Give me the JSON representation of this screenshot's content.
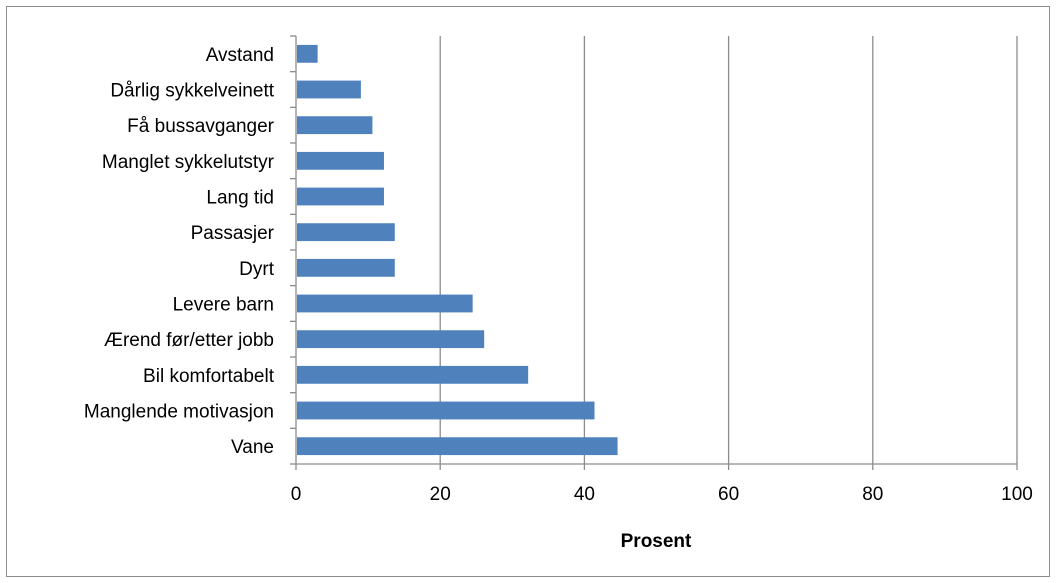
{
  "chart_data": {
    "type": "bar",
    "orientation": "horizontal",
    "categories": [
      "Avstand",
      "Dårlig sykkelveinett",
      "Få bussavganger",
      "Manglet sykkelutstyr",
      "Lang tid",
      "Passasjer",
      "Dyrt",
      "Levere barn",
      "Ærend før/etter jobb",
      "Bil komfortabelt",
      "Manglende motivasjon",
      "Vane"
    ],
    "values": [
      3,
      9,
      10.6,
      12.2,
      12.2,
      13.7,
      13.7,
      24.5,
      26.1,
      32.2,
      41.4,
      44.6
    ],
    "title": "",
    "xlabel": "Prosent",
    "ylabel": "",
    "xlim": [
      0,
      100
    ],
    "xticks": [
      "0",
      "20",
      "40",
      "60",
      "80",
      "100"
    ],
    "grid": "vertical",
    "legend": "none",
    "bar_color": "#4f81bd",
    "grid_color": "#8c8c8c"
  }
}
